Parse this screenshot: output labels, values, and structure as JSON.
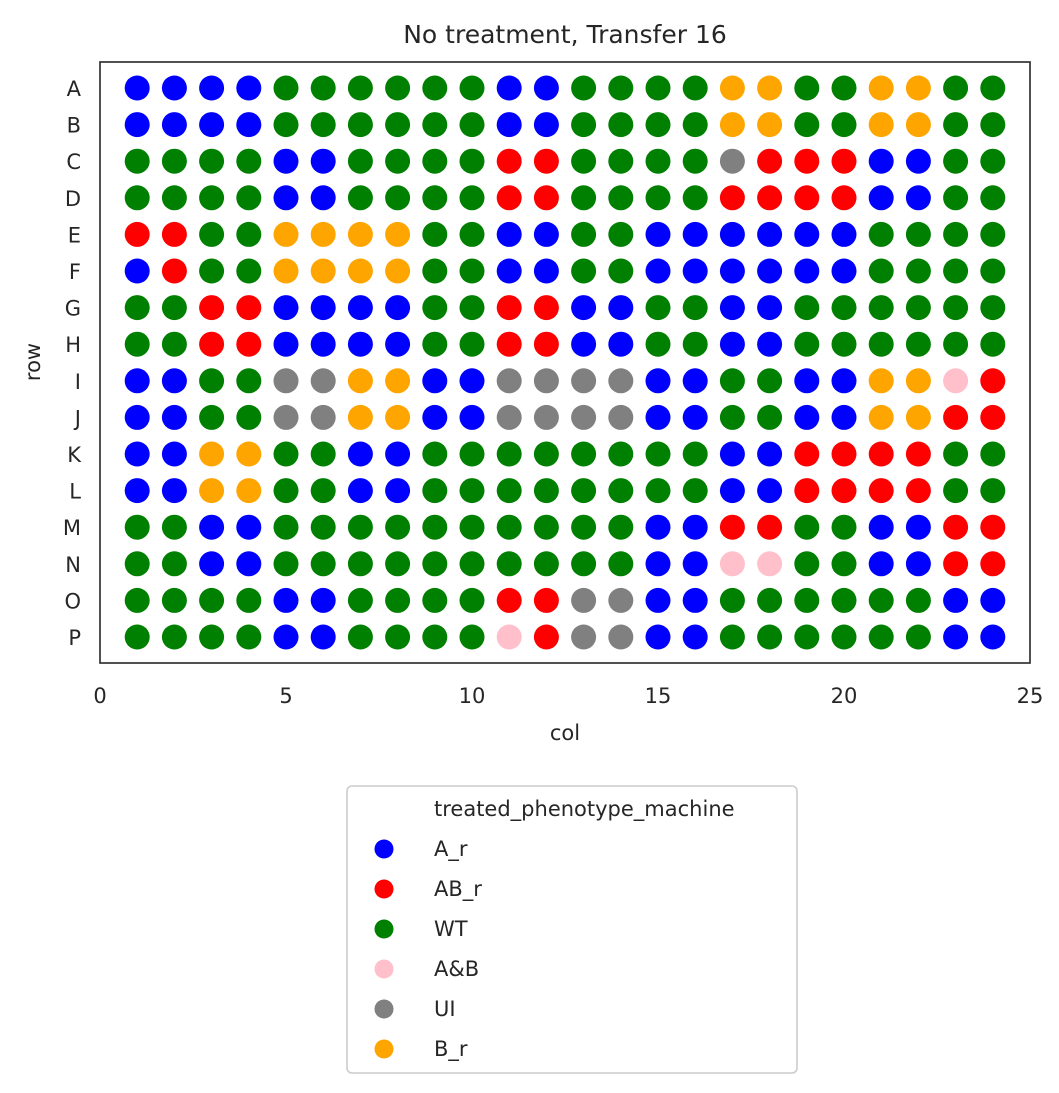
{
  "chart_data": {
    "type": "scatter",
    "title": "No treatment, Transfer 16",
    "xlabel": "col",
    "ylabel": "row",
    "xlim": [
      0,
      25
    ],
    "xticks": [
      0,
      5,
      10,
      15,
      20,
      25
    ],
    "rows": [
      "A",
      "B",
      "C",
      "D",
      "E",
      "F",
      "G",
      "H",
      "I",
      "J",
      "K",
      "L",
      "M",
      "N",
      "O",
      "P"
    ],
    "columns": [
      1,
      2,
      3,
      4,
      5,
      6,
      7,
      8,
      9,
      10,
      11,
      12,
      13,
      14,
      15,
      16,
      17,
      18,
      19,
      20,
      21,
      22,
      23,
      24
    ],
    "grid": false,
    "legend": {
      "title": "treated_phenotype_machine",
      "placement": "below",
      "entries": [
        {
          "label": "A_r",
          "color": "#0000ff"
        },
        {
          "label": "AB_r",
          "color": "#ff0000"
        },
        {
          "label": "WT",
          "color": "#008000"
        },
        {
          "label": "A&B",
          "color": "#ffc0cb"
        },
        {
          "label": "UI",
          "color": "#808080"
        },
        {
          "label": "B_r",
          "color": "#ffa500"
        }
      ]
    },
    "wells": [
      [
        "A_r",
        "A_r",
        "A_r",
        "A_r",
        "WT",
        "WT",
        "WT",
        "WT",
        "WT",
        "WT",
        "A_r",
        "A_r",
        "WT",
        "WT",
        "WT",
        "WT",
        "B_r",
        "B_r",
        "WT",
        "WT",
        "B_r",
        "B_r",
        "WT",
        "WT"
      ],
      [
        "A_r",
        "A_r",
        "A_r",
        "A_r",
        "WT",
        "WT",
        "WT",
        "WT",
        "WT",
        "WT",
        "A_r",
        "A_r",
        "WT",
        "WT",
        "WT",
        "WT",
        "B_r",
        "B_r",
        "WT",
        "WT",
        "B_r",
        "B_r",
        "WT",
        "WT"
      ],
      [
        "WT",
        "WT",
        "WT",
        "WT",
        "A_r",
        "A_r",
        "WT",
        "WT",
        "WT",
        "WT",
        "AB_r",
        "AB_r",
        "WT",
        "WT",
        "WT",
        "WT",
        "UI",
        "AB_r",
        "AB_r",
        "AB_r",
        "A_r",
        "A_r",
        "WT",
        "WT"
      ],
      [
        "WT",
        "WT",
        "WT",
        "WT",
        "A_r",
        "A_r",
        "WT",
        "WT",
        "WT",
        "WT",
        "AB_r",
        "AB_r",
        "WT",
        "WT",
        "WT",
        "WT",
        "AB_r",
        "AB_r",
        "AB_r",
        "AB_r",
        "A_r",
        "A_r",
        "WT",
        "WT"
      ],
      [
        "AB_r",
        "AB_r",
        "WT",
        "WT",
        "B_r",
        "B_r",
        "B_r",
        "B_r",
        "WT",
        "WT",
        "A_r",
        "A_r",
        "WT",
        "WT",
        "A_r",
        "A_r",
        "A_r",
        "A_r",
        "A_r",
        "A_r",
        "WT",
        "WT",
        "WT",
        "WT"
      ],
      [
        "A_r",
        "AB_r",
        "WT",
        "WT",
        "B_r",
        "B_r",
        "B_r",
        "B_r",
        "WT",
        "WT",
        "A_r",
        "A_r",
        "WT",
        "WT",
        "A_r",
        "A_r",
        "A_r",
        "A_r",
        "A_r",
        "A_r",
        "WT",
        "WT",
        "WT",
        "WT"
      ],
      [
        "WT",
        "WT",
        "AB_r",
        "AB_r",
        "A_r",
        "A_r",
        "A_r",
        "A_r",
        "WT",
        "WT",
        "AB_r",
        "AB_r",
        "A_r",
        "A_r",
        "WT",
        "WT",
        "A_r",
        "A_r",
        "WT",
        "WT",
        "WT",
        "WT",
        "WT",
        "WT"
      ],
      [
        "WT",
        "WT",
        "AB_r",
        "AB_r",
        "A_r",
        "A_r",
        "A_r",
        "A_r",
        "WT",
        "WT",
        "AB_r",
        "AB_r",
        "A_r",
        "A_r",
        "WT",
        "WT",
        "A_r",
        "A_r",
        "WT",
        "WT",
        "WT",
        "WT",
        "WT",
        "WT"
      ],
      [
        "A_r",
        "A_r",
        "WT",
        "WT",
        "UI",
        "UI",
        "B_r",
        "B_r",
        "A_r",
        "A_r",
        "UI",
        "UI",
        "UI",
        "UI",
        "A_r",
        "A_r",
        "WT",
        "WT",
        "A_r",
        "A_r",
        "B_r",
        "B_r",
        "A&B",
        "AB_r"
      ],
      [
        "A_r",
        "A_r",
        "WT",
        "WT",
        "UI",
        "UI",
        "B_r",
        "B_r",
        "A_r",
        "A_r",
        "UI",
        "UI",
        "UI",
        "UI",
        "A_r",
        "A_r",
        "WT",
        "WT",
        "A_r",
        "A_r",
        "B_r",
        "B_r",
        "AB_r",
        "AB_r"
      ],
      [
        "A_r",
        "A_r",
        "B_r",
        "B_r",
        "WT",
        "WT",
        "A_r",
        "A_r",
        "WT",
        "WT",
        "WT",
        "WT",
        "WT",
        "WT",
        "WT",
        "WT",
        "A_r",
        "A_r",
        "AB_r",
        "AB_r",
        "AB_r",
        "AB_r",
        "WT",
        "WT"
      ],
      [
        "A_r",
        "A_r",
        "B_r",
        "B_r",
        "WT",
        "WT",
        "A_r",
        "A_r",
        "WT",
        "WT",
        "WT",
        "WT",
        "WT",
        "WT",
        "WT",
        "WT",
        "A_r",
        "A_r",
        "AB_r",
        "AB_r",
        "AB_r",
        "AB_r",
        "WT",
        "WT"
      ],
      [
        "WT",
        "WT",
        "A_r",
        "A_r",
        "WT",
        "WT",
        "WT",
        "WT",
        "WT",
        "WT",
        "WT",
        "WT",
        "WT",
        "WT",
        "A_r",
        "A_r",
        "AB_r",
        "AB_r",
        "WT",
        "WT",
        "A_r",
        "A_r",
        "AB_r",
        "AB_r"
      ],
      [
        "WT",
        "WT",
        "A_r",
        "A_r",
        "WT",
        "WT",
        "WT",
        "WT",
        "WT",
        "WT",
        "WT",
        "WT",
        "WT",
        "WT",
        "A_r",
        "A_r",
        "A&B",
        "A&B",
        "WT",
        "WT",
        "A_r",
        "A_r",
        "AB_r",
        "AB_r"
      ],
      [
        "WT",
        "WT",
        "WT",
        "WT",
        "A_r",
        "A_r",
        "WT",
        "WT",
        "WT",
        "WT",
        "AB_r",
        "AB_r",
        "UI",
        "UI",
        "A_r",
        "A_r",
        "WT",
        "WT",
        "WT",
        "WT",
        "WT",
        "WT",
        "A_r",
        "A_r"
      ],
      [
        "WT",
        "WT",
        "WT",
        "WT",
        "A_r",
        "A_r",
        "WT",
        "WT",
        "WT",
        "WT",
        "A&B",
        "AB_r",
        "UI",
        "UI",
        "A_r",
        "A_r",
        "WT",
        "WT",
        "WT",
        "WT",
        "WT",
        "WT",
        "A_r",
        "A_r"
      ]
    ]
  }
}
